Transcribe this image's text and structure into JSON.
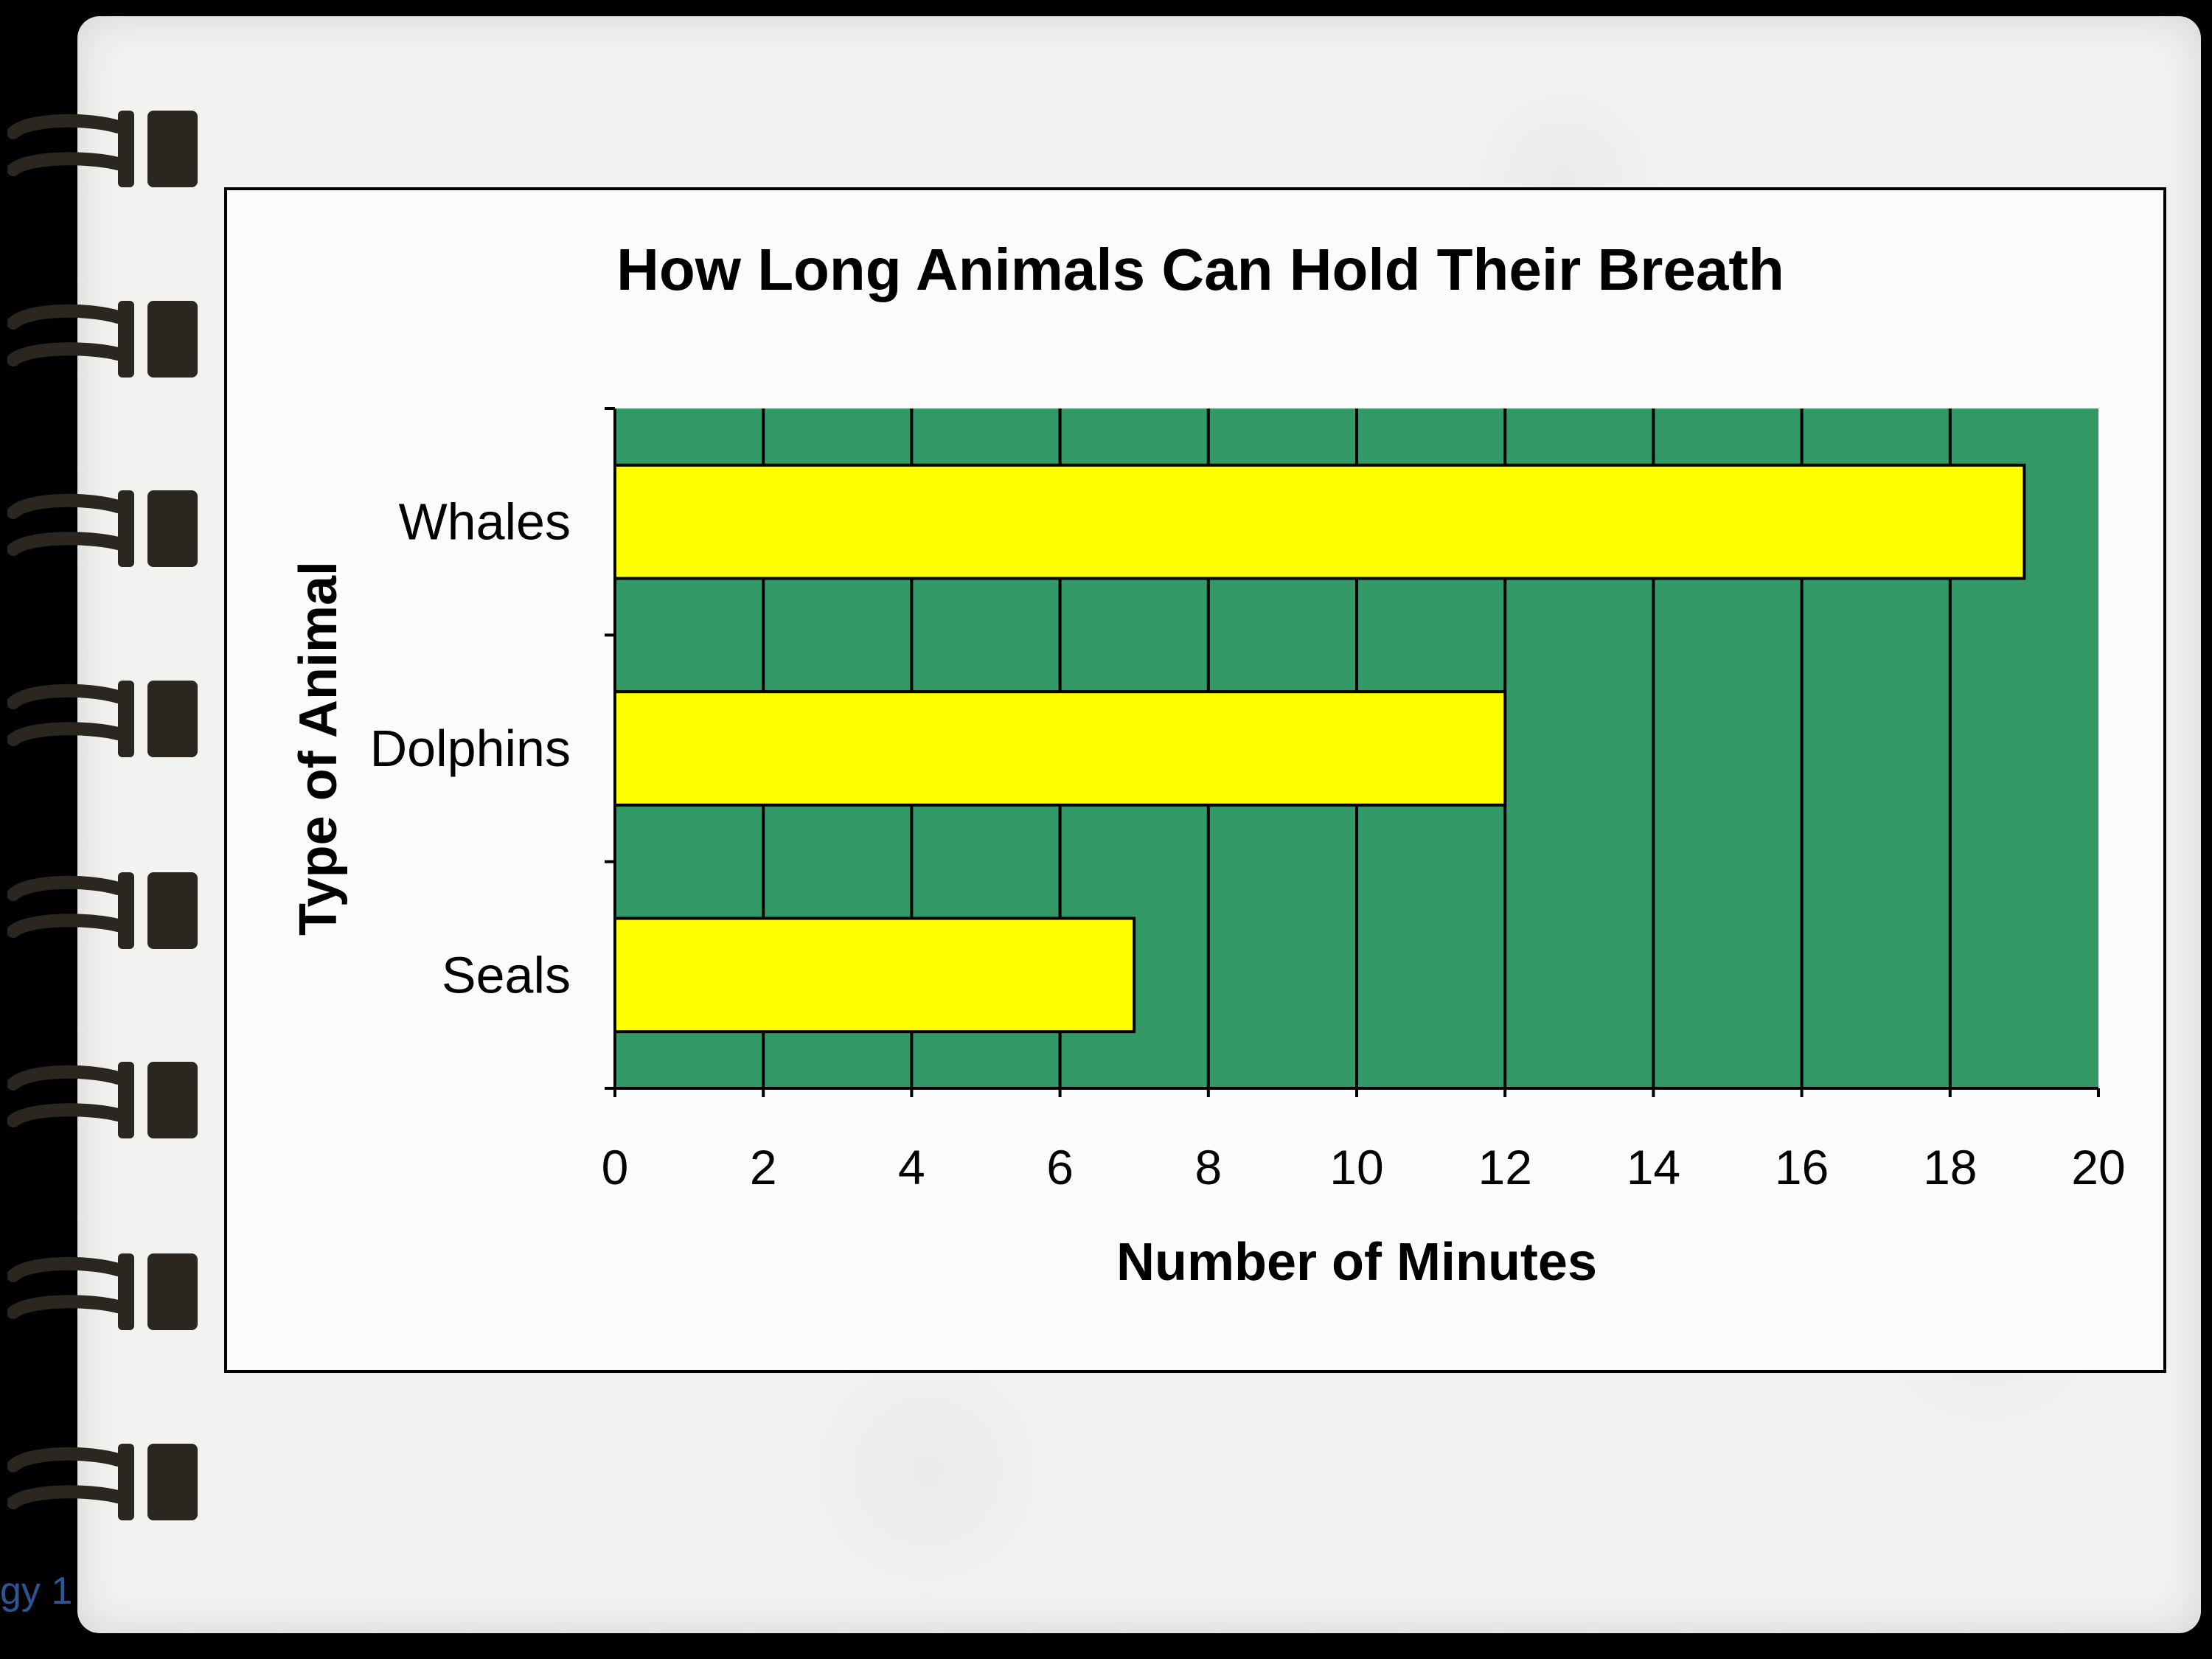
{
  "colors": {
    "plot_background": "#339966",
    "bar_fill": "#ffff00",
    "bar_stroke": "#000000",
    "page_background": "#000000",
    "notebook_paper": "#f2f2f0",
    "ring": "#2b2620",
    "footer_text": "#2f5597"
  },
  "icons": {
    "binder_ring": "binder-ring-icon"
  },
  "footer": {
    "text": "gy 1"
  },
  "chart_data": {
    "type": "bar",
    "orientation": "horizontal",
    "title": "How Long Animals Can Hold Their Breath",
    "xlabel": "Number of Minutes",
    "ylabel": "Type of Animal",
    "categories": [
      "Whales",
      "Dolphins",
      "Seals"
    ],
    "values": [
      19,
      12,
      7
    ],
    "xlim": [
      0,
      20
    ],
    "xticks": [
      "0",
      "2",
      "4",
      "6",
      "8",
      "10",
      "12",
      "14",
      "16",
      "18",
      "20"
    ],
    "grid": "vertical",
    "legend": "none"
  }
}
